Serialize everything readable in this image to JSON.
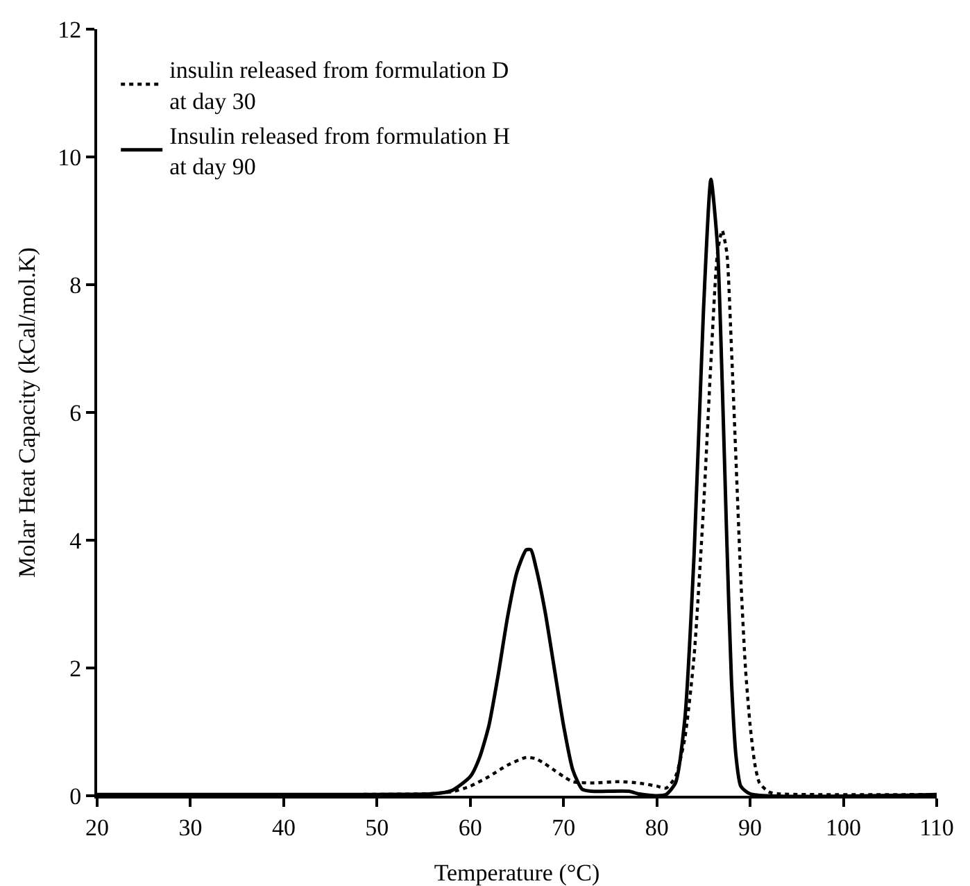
{
  "chart_data": {
    "type": "line",
    "xlabel": "Temperature (°C)",
    "ylabel": "Molar Heat Capacity (kCal/mol.K)",
    "xlim": [
      20,
      110
    ],
    "xticks": [
      20,
      30,
      40,
      50,
      60,
      70,
      80,
      90,
      100,
      110
    ],
    "ylim": [
      0,
      12
    ],
    "yticks": [
      0,
      2,
      4,
      6,
      8,
      10,
      12
    ],
    "grid": false,
    "legend": "top left",
    "marker": "none",
    "series": [
      {
        "name": "insulin released from formulation D\nat day 30",
        "color": "#000000",
        "line_style": "dotted",
        "x": [
          20,
          55,
          58,
          60,
          62,
          64,
          66,
          67,
          68,
          69,
          70,
          71,
          73,
          76,
          78,
          80,
          81,
          82,
          83,
          84,
          85,
          85.8,
          86.5,
          87,
          87.5,
          88,
          88.5,
          89,
          89.5,
          90,
          90.5,
          91,
          92,
          93,
          110
        ],
        "values": [
          0.02,
          0.03,
          0.06,
          0.15,
          0.3,
          0.48,
          0.6,
          0.58,
          0.5,
          0.4,
          0.3,
          0.22,
          0.2,
          0.22,
          0.2,
          0.15,
          0.12,
          0.3,
          0.9,
          2.2,
          4.5,
          6.8,
          8.5,
          8.85,
          8.5,
          7,
          5.2,
          3.4,
          2,
          1.1,
          0.5,
          0.2,
          0.06,
          0.03,
          0.02
        ]
      },
      {
        "name": "Insulin released from formulation H\nat day 90",
        "color": "#000000",
        "line_style": "solid",
        "x": [
          20,
          50,
          56,
          58,
          60,
          61,
          62,
          63,
          64,
          65,
          66,
          66.5,
          67,
          68,
          69,
          70,
          71,
          72,
          73,
          77,
          78,
          80,
          81,
          82,
          83,
          84,
          85,
          85.8,
          86.5,
          87,
          87.5,
          88,
          88.5,
          89,
          90,
          110
        ],
        "values": [
          0.02,
          0.02,
          0.03,
          0.08,
          0.3,
          0.6,
          1.1,
          1.9,
          2.8,
          3.5,
          3.85,
          3.85,
          3.6,
          2.9,
          2,
          1.1,
          0.4,
          0.1,
          0.07,
          0.07,
          0.03,
          0,
          0.02,
          0.2,
          1.2,
          3.8,
          7.6,
          9.65,
          8.6,
          6.5,
          4,
          1.8,
          0.6,
          0.15,
          0.03,
          0.02
        ]
      }
    ]
  }
}
